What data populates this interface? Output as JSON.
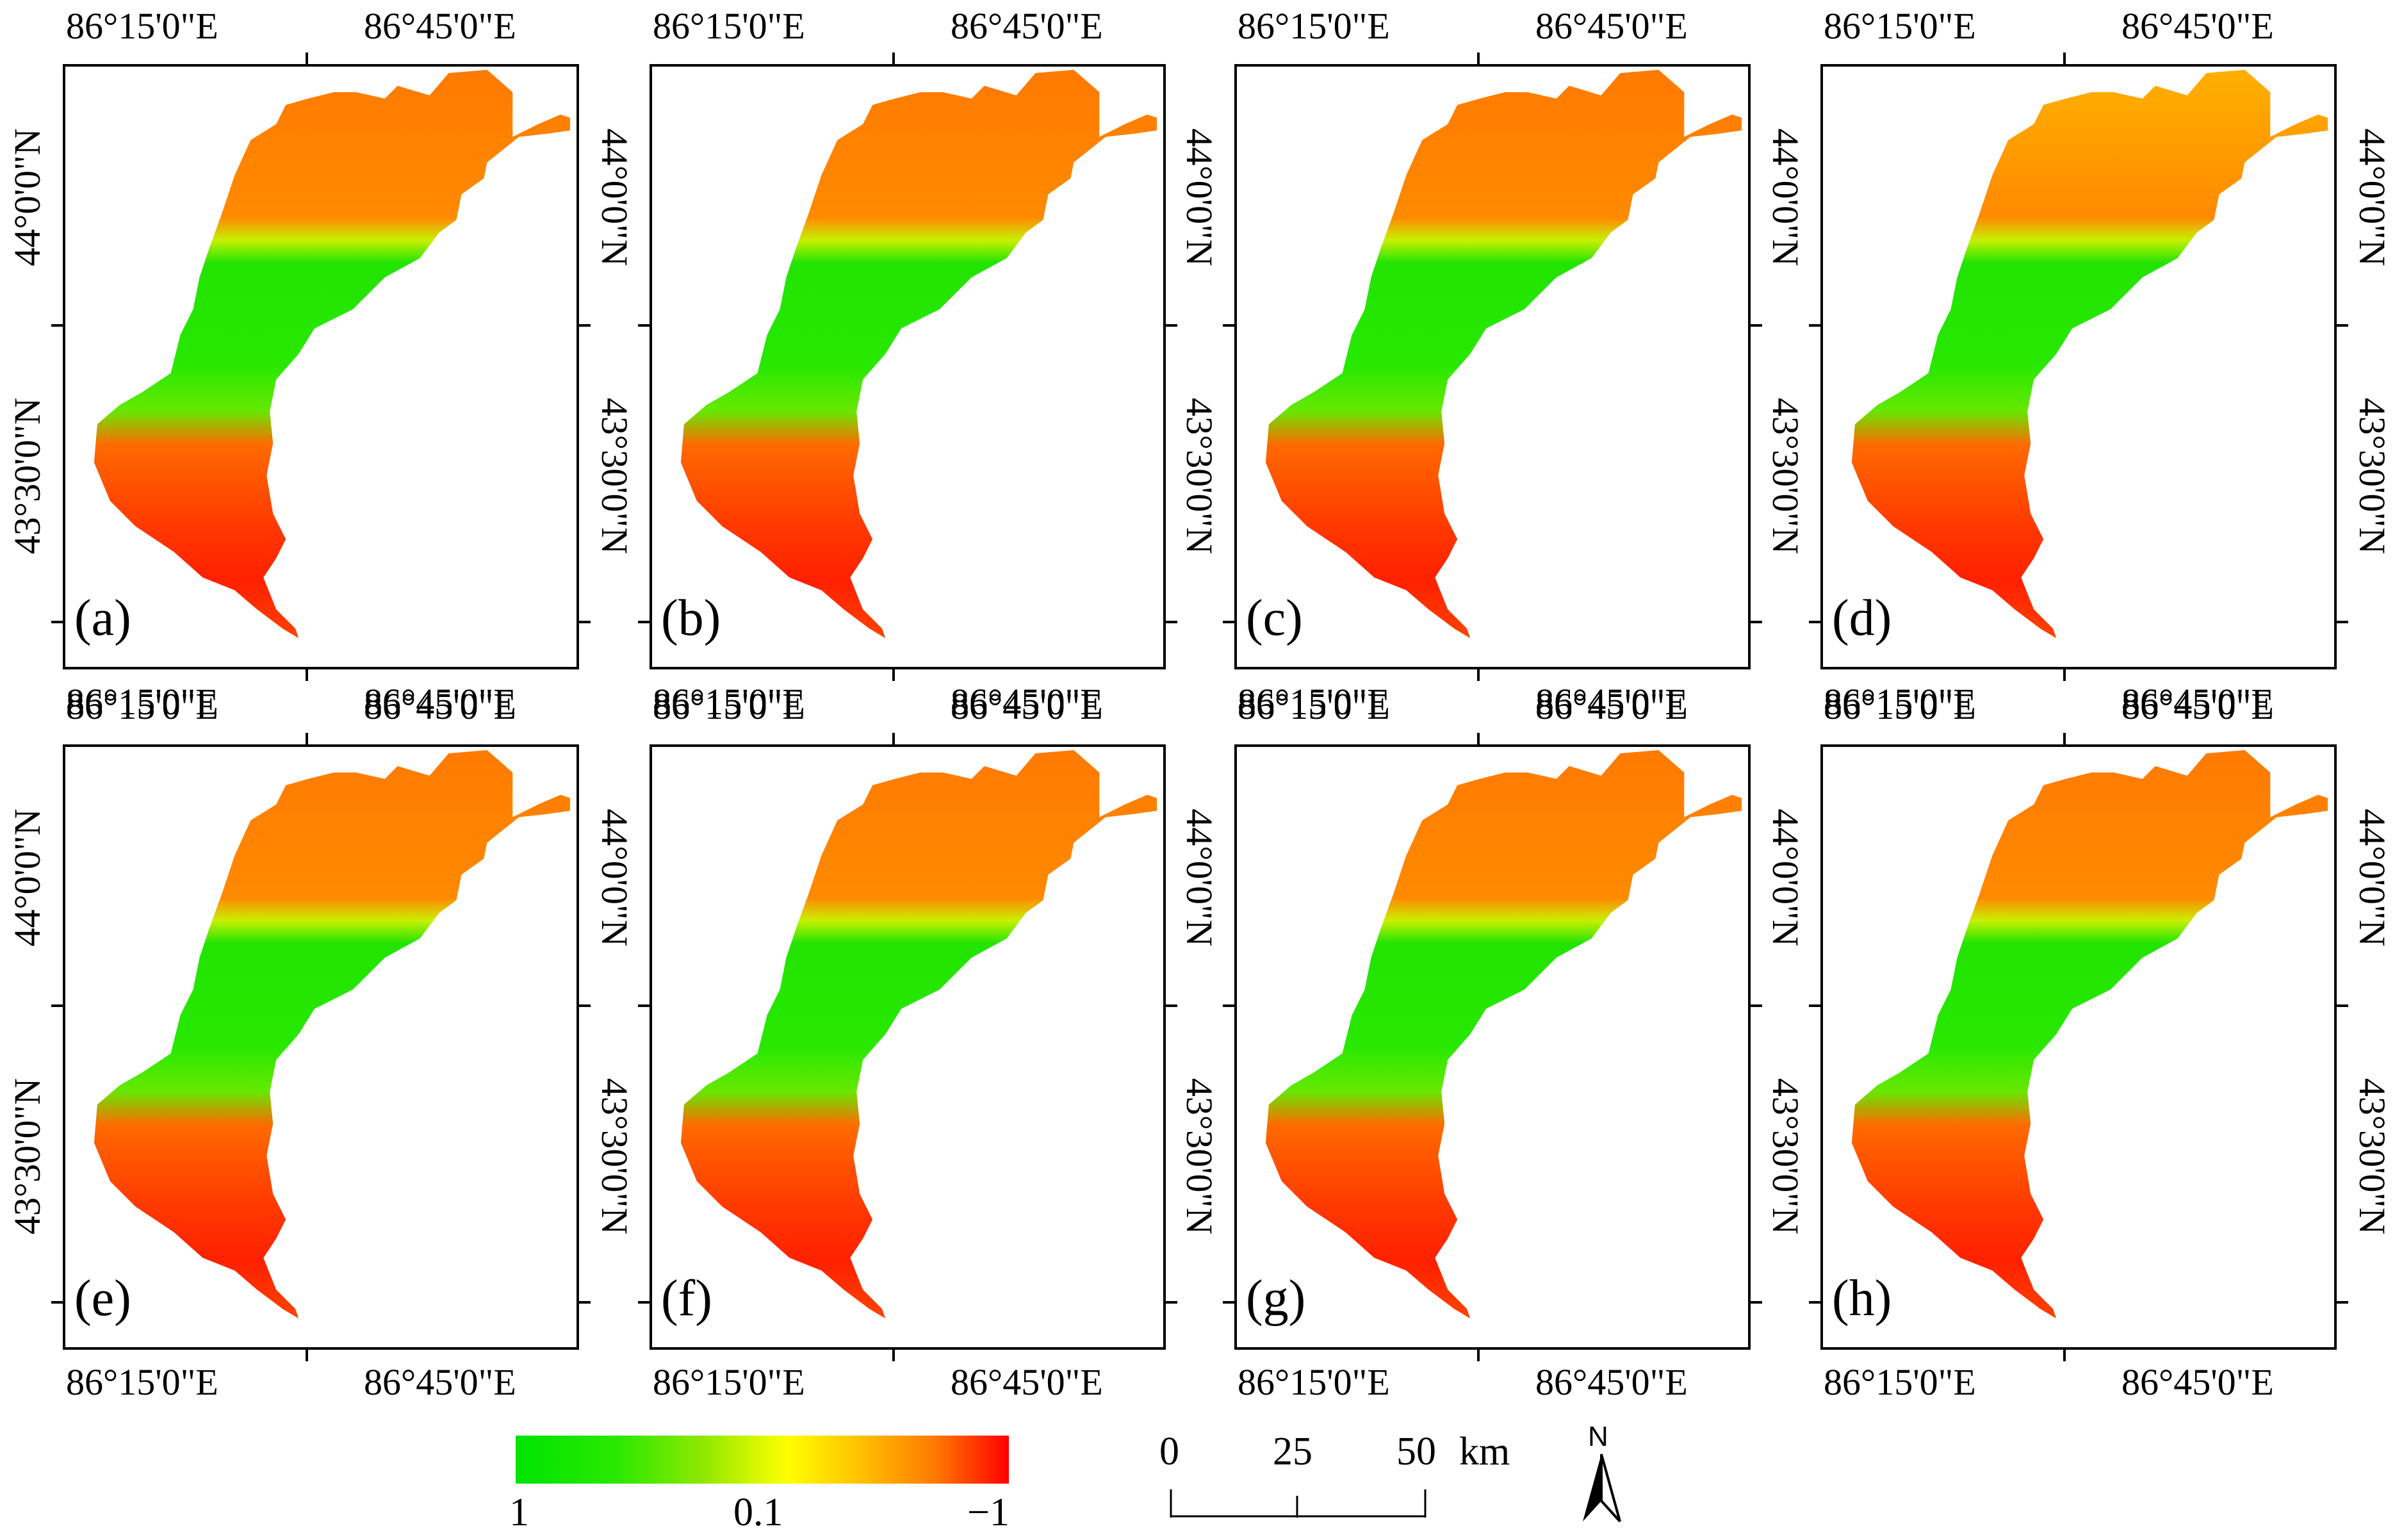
{
  "figure": {
    "panels": [
      {
        "letter": "(a)"
      },
      {
        "letter": "(b)"
      },
      {
        "letter": "(c)"
      },
      {
        "letter": "(d)"
      },
      {
        "letter": "(e)"
      },
      {
        "letter": "(f)"
      },
      {
        "letter": "(g)"
      },
      {
        "letter": "(h)"
      }
    ],
    "axis_labels": {
      "lon_west": "86°15'0\"E",
      "lon_east": "86°45'0\"E",
      "lat_north": "44°0'0\"N",
      "lat_south": "43°30'0\"N"
    }
  },
  "legend": {
    "min_label": "1",
    "mid_label": "0.1",
    "max_label": "−1",
    "colors": [
      "#00e400",
      "#ffff00",
      "#ff0000"
    ]
  },
  "scalebar": {
    "ticks": [
      "0",
      "25",
      "50"
    ],
    "unit": "km"
  },
  "north_arrow": {
    "label": "N"
  }
}
